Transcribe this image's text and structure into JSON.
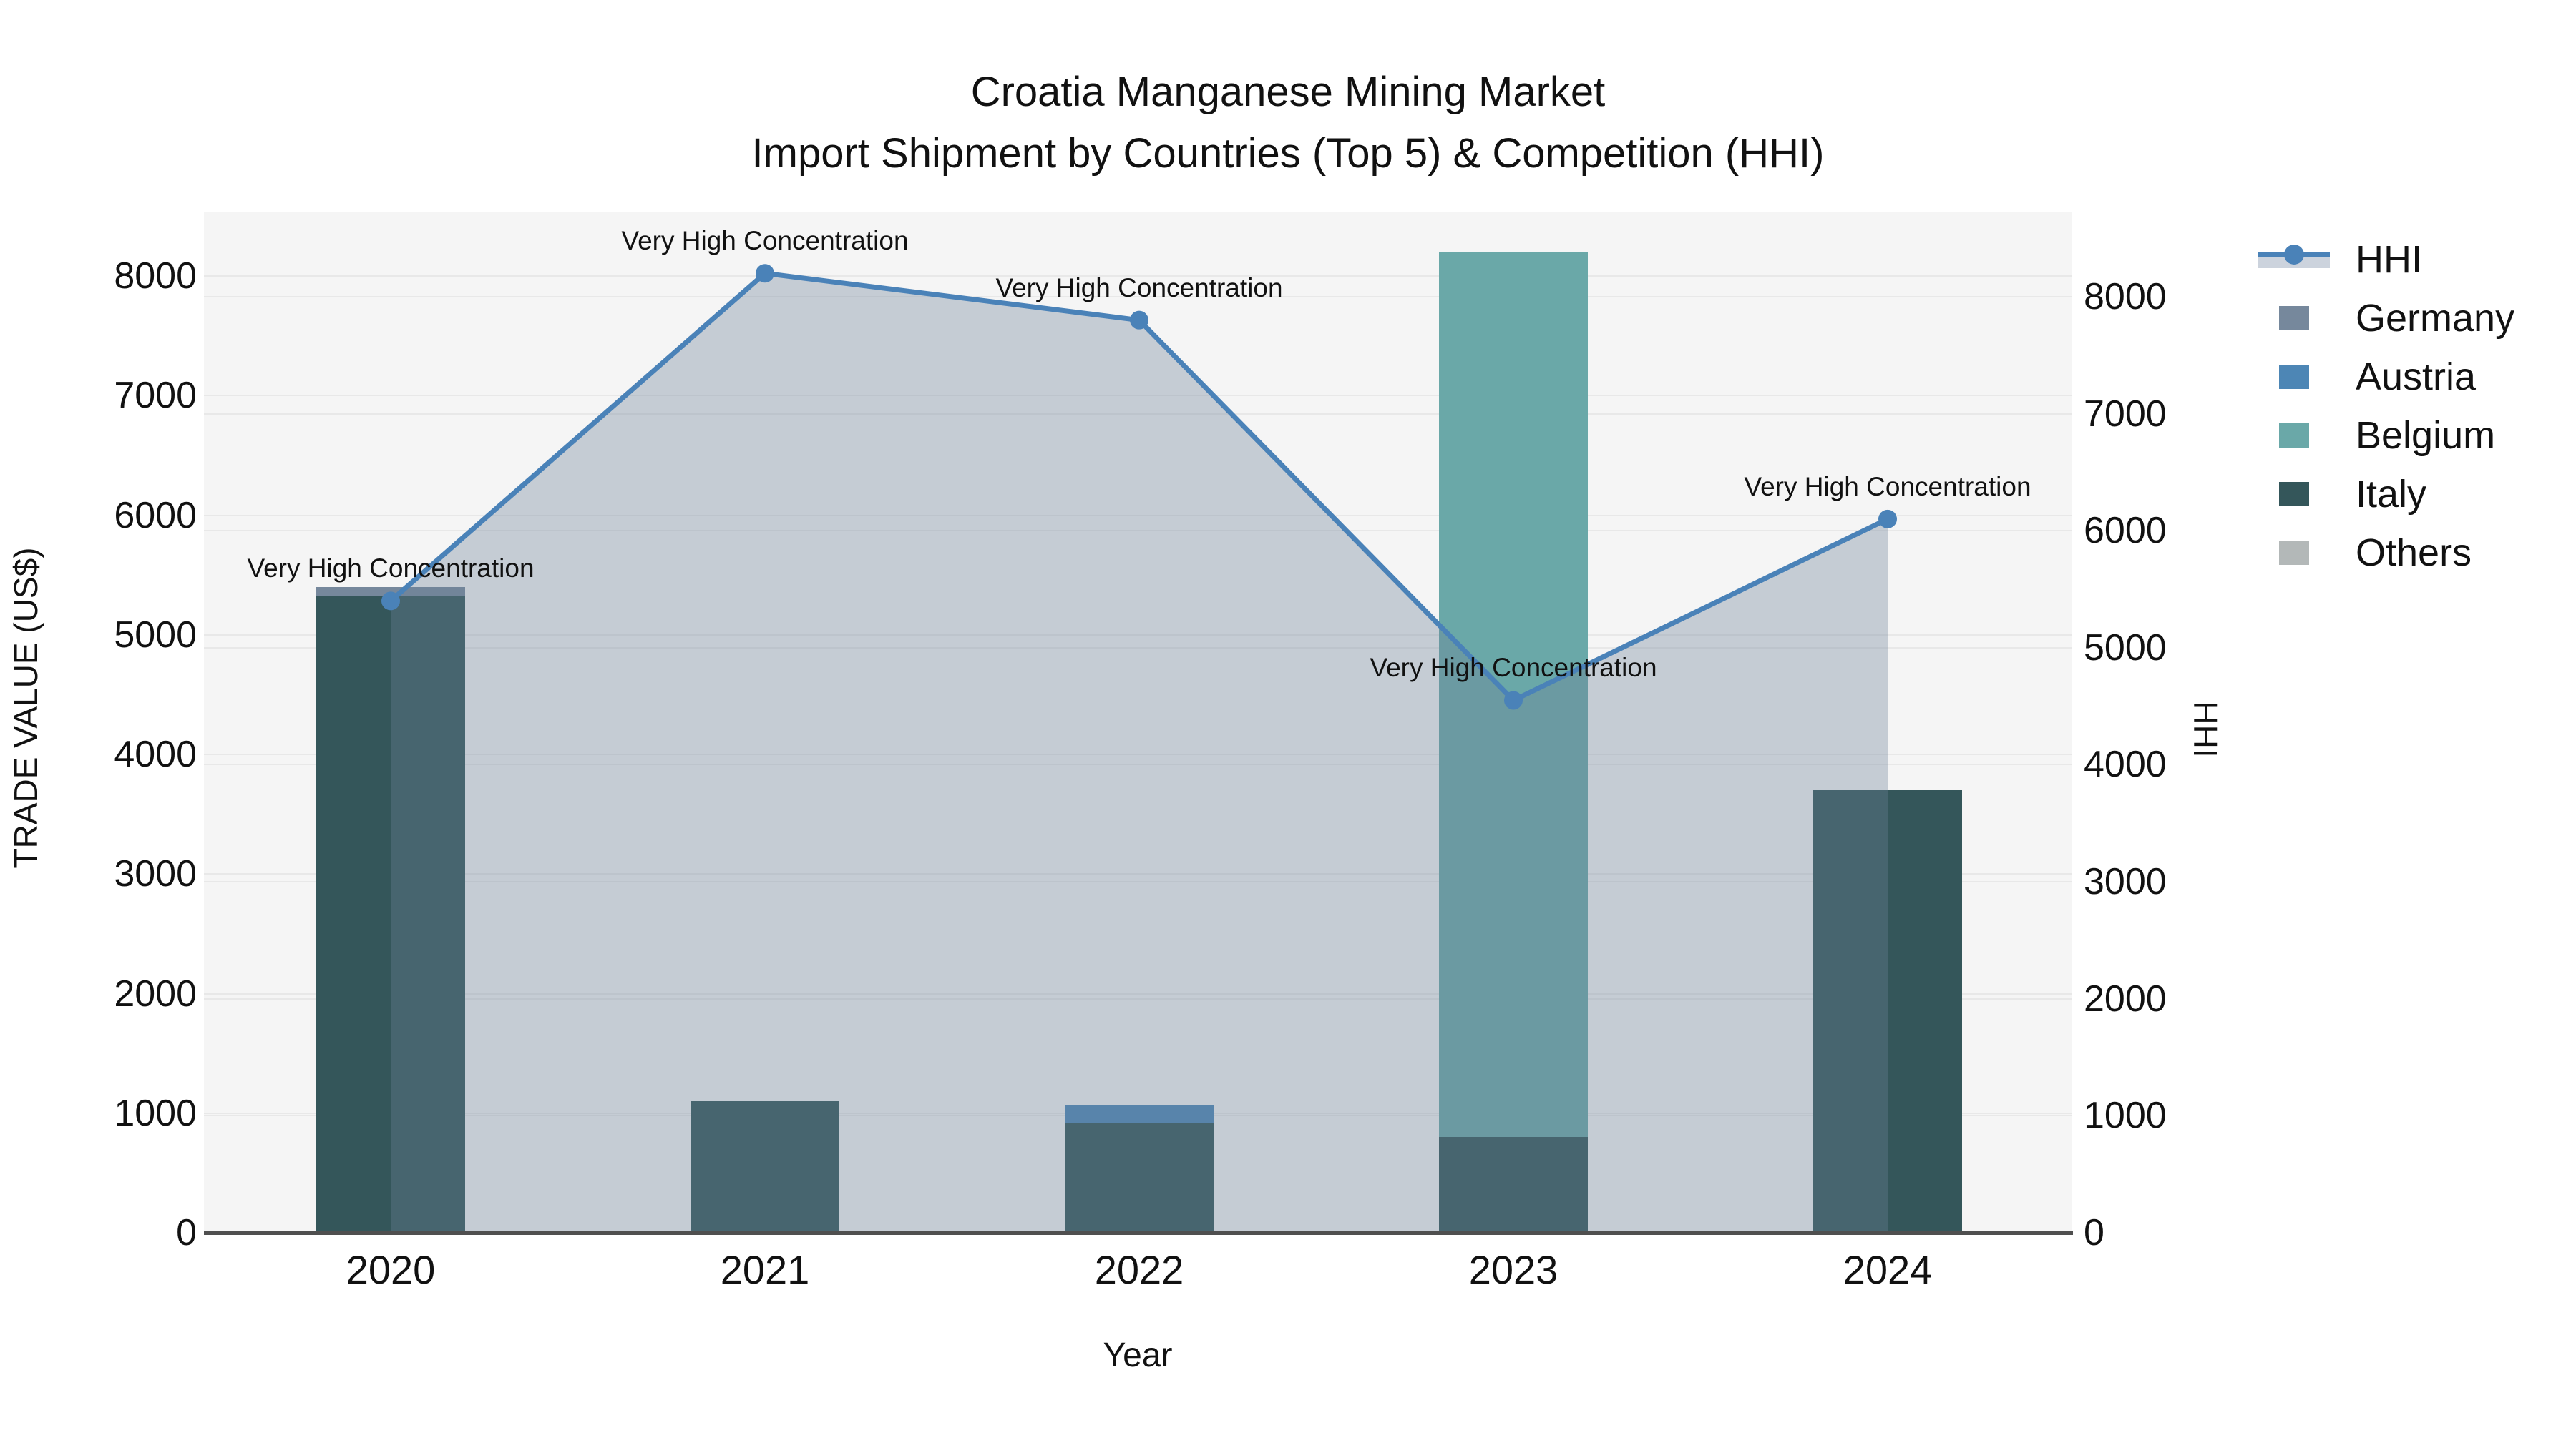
{
  "chart_data": {
    "type": "bar+line",
    "title": "Croatia Manganese Mining Market",
    "subtitle": "Import Shipment by Countries (Top 5) & Competition (HHI)",
    "x_axis": {
      "title": "Year",
      "categories": [
        "2020",
        "2021",
        "2022",
        "2023",
        "2024"
      ]
    },
    "left_axis": {
      "title": "TRADE VALUE (US$)",
      "ticks": [
        0,
        1000,
        2000,
        3000,
        4000,
        5000,
        6000,
        7000,
        8000
      ],
      "range": [
        0,
        8540
      ]
    },
    "right_axis": {
      "title": "HHI",
      "ticks": [
        0,
        1000,
        2000,
        3000,
        4000,
        5000,
        6000,
        7000,
        8000
      ],
      "range": [
        0,
        8730
      ]
    },
    "stack_order": [
      "Italy",
      "Germany",
      "Austria",
      "Belgium",
      "Others"
    ],
    "bar_series": [
      {
        "name": "Germany",
        "color": "#76889c",
        "values": [
          70,
          0,
          0,
          0,
          0
        ]
      },
      {
        "name": "Austria",
        "color": "#4d86b5",
        "values": [
          0,
          0,
          145,
          0,
          0
        ]
      },
      {
        "name": "Belgium",
        "color": "#6aa8a8",
        "values": [
          0,
          0,
          0,
          7400,
          0
        ]
      },
      {
        "name": "Italy",
        "color": "#34565a",
        "values": [
          5330,
          1100,
          920,
          800,
          3700
        ]
      },
      {
        "name": "Others",
        "color": "#b3b8b8",
        "values": [
          0,
          0,
          0,
          0,
          0
        ]
      }
    ],
    "hhi_series": {
      "name": "HHI",
      "values": [
        5400,
        8200,
        7800,
        4550,
        6100
      ],
      "line_color": "#4a82b8",
      "fill_color": "rgba(110,130,152,0.35)"
    },
    "annotations": [
      {
        "category": "2020",
        "text": "Very High Concentration"
      },
      {
        "category": "2021",
        "text": "Very High Concentration"
      },
      {
        "category": "2022",
        "text": "Very High Concentration"
      },
      {
        "category": "2023",
        "text": "Very High Concentration"
      },
      {
        "category": "2024",
        "text": "Very High Concentration"
      }
    ],
    "legend": [
      {
        "label": "HHI",
        "type": "line",
        "color": "#4a82b8",
        "band_color": "#ccd3dd"
      },
      {
        "label": "Germany",
        "type": "square",
        "color": "#76889c"
      },
      {
        "label": "Austria",
        "type": "square",
        "color": "#4d86b5"
      },
      {
        "label": "Belgium",
        "type": "square",
        "color": "#6aa8a8"
      },
      {
        "label": "Italy",
        "type": "square",
        "color": "#34565a"
      },
      {
        "label": "Others",
        "type": "square",
        "color": "#b3b8b8"
      }
    ],
    "colors": {
      "plot_background": "#f5f5f5",
      "grid": "#e8e8e8",
      "axis_line": "#4f4f4f",
      "text": "#111111"
    }
  }
}
